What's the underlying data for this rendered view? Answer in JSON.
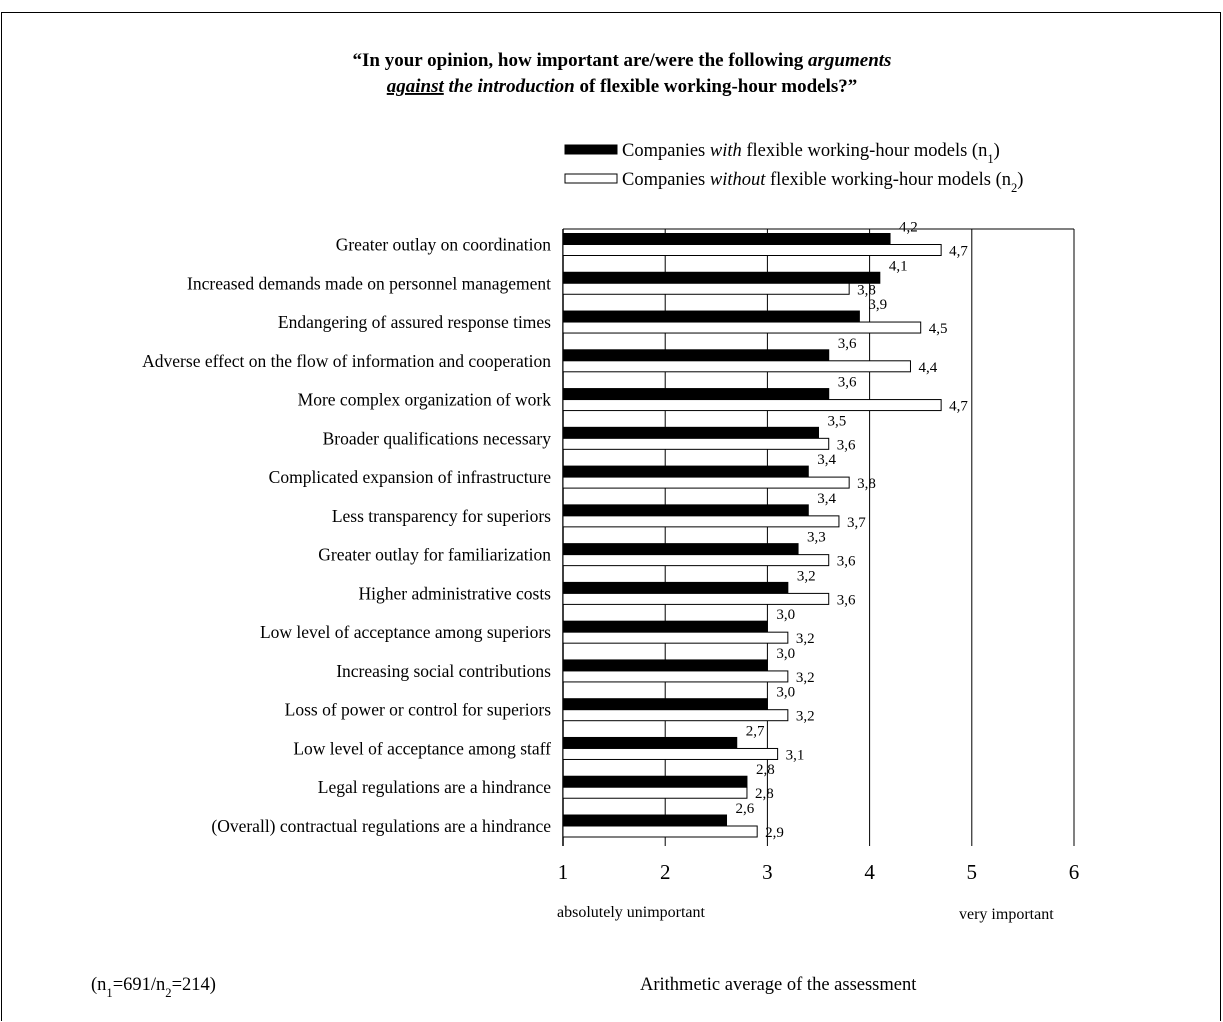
{
  "chart_data": {
    "type": "bar",
    "orientation": "horizontal",
    "title": {
      "line1": [
        {
          "text": "“In your opinion, how important are/were the following ",
          "style": "bold"
        },
        {
          "text": "arguments",
          "style": "bold-italic"
        }
      ],
      "line2": [
        {
          "text": "against",
          "style": "bold-italic-underline"
        },
        {
          "text": " the introduction",
          "style": "bold-italic"
        },
        {
          "text": " of flexible working-hour models?”",
          "style": "bold"
        }
      ]
    },
    "categories": [
      "Greater outlay on coordination",
      "Increased demands made on personnel management",
      "Endangering of assured response times",
      "Adverse effect on the flow of information and cooperation",
      "More complex organization of work",
      "Broader qualifications necessary",
      "Complicated expansion of infrastructure",
      "Less transparency for superiors",
      "Greater outlay for familiarization",
      "Higher administrative costs",
      "Low level of acceptance among superiors",
      "Increasing social contributions",
      "Loss of power or control for superiors",
      "Low level of acceptance among staff",
      "Legal regulations are a hindrance",
      "(Overall) contractual regulations are a hindrance"
    ],
    "series": [
      {
        "legend": [
          {
            "text": "Companies ",
            "style": "normal"
          },
          {
            "text": "with",
            "style": "italic"
          },
          {
            "text": " flexible working-hour models (n",
            "style": "normal"
          },
          {
            "text": "1",
            "style": "sub"
          },
          {
            "text": ")",
            "style": "normal"
          }
        ],
        "color": "#000000",
        "values": [
          4.2,
          4.1,
          3.9,
          3.6,
          3.6,
          3.5,
          3.4,
          3.4,
          3.3,
          3.2,
          3.0,
          3.0,
          3.0,
          2.7,
          2.8,
          2.6
        ],
        "labels": [
          "4,2",
          "4,1",
          "3,9",
          "3,6",
          "3,6",
          "3,5",
          "3,4",
          "3,4",
          "3,3",
          "3,2",
          "3,0",
          "3,0",
          "3,0",
          "2,7",
          "2,8",
          "2,6"
        ]
      },
      {
        "legend": [
          {
            "text": "Companies ",
            "style": "normal"
          },
          {
            "text": "without",
            "style": "italic"
          },
          {
            "text": " flexible working-hour models (n",
            "style": "normal"
          },
          {
            "text": "2",
            "style": "sub"
          },
          {
            "text": ")",
            "style": "normal"
          }
        ],
        "color": "#ffffff",
        "values": [
          4.7,
          3.8,
          4.5,
          4.4,
          4.7,
          3.6,
          3.8,
          3.7,
          3.6,
          3.6,
          3.2,
          3.2,
          3.2,
          3.1,
          2.8,
          2.9
        ],
        "labels": [
          "4,7",
          "3,8",
          "4,5",
          "4,4",
          "4,7",
          "3,6",
          "3,8",
          "3,7",
          "3,6",
          "3,6",
          "3,2",
          "3,2",
          "3,2",
          "3,1",
          "2,8",
          "2,9"
        ]
      }
    ],
    "xlim": [
      1,
      6
    ],
    "xticks": [
      "1",
      "2",
      "3",
      "4",
      "5",
      "6"
    ],
    "scale_low_label": "absolutely unimportant",
    "scale_high_label": "very important",
    "xlabel": "Arithmetic average of the assessment",
    "sample_note": [
      {
        "text": "(n",
        "style": "normal"
      },
      {
        "text": "1",
        "style": "sub"
      },
      {
        "text": "=691/n",
        "style": "normal"
      },
      {
        "text": "2",
        "style": "sub"
      },
      {
        "text": "=214)",
        "style": "normal"
      }
    ],
    "grid": "vertical lines at each integer"
  }
}
